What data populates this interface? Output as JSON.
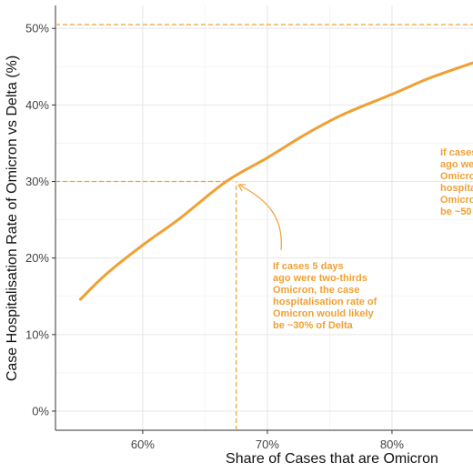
{
  "chart_data": {
    "type": "line",
    "xlabel": "Share of Cases that are Omicron",
    "ylabel": "Case Hospitalisation Rate of Omicron vs Delta (%)",
    "xlim": [
      0.53,
      0.865
    ],
    "ylim": [
      -0.025,
      0.53
    ],
    "x_ticks": [
      {
        "value": 0.6,
        "label": "60%"
      },
      {
        "value": 0.7,
        "label": "70%"
      },
      {
        "value": 0.8,
        "label": "80%"
      }
    ],
    "y_ticks": [
      {
        "value": 0.0,
        "label": "0%"
      },
      {
        "value": 0.1,
        "label": "10%"
      },
      {
        "value": 0.2,
        "label": "20%"
      },
      {
        "value": 0.3,
        "label": "30%"
      },
      {
        "value": 0.4,
        "label": "40%"
      },
      {
        "value": 0.5,
        "label": "50%"
      }
    ],
    "grid": true,
    "series": [
      {
        "color": "#f0a033",
        "points": [
          [
            0.55,
            0.146
          ],
          [
            0.57,
            0.178
          ],
          [
            0.6,
            0.217
          ],
          [
            0.63,
            0.252
          ],
          [
            0.667,
            0.3
          ],
          [
            0.7,
            0.331
          ],
          [
            0.73,
            0.361
          ],
          [
            0.76,
            0.387
          ],
          [
            0.8,
            0.414
          ],
          [
            0.83,
            0.435
          ],
          [
            0.865,
            0.455
          ]
        ]
      }
    ],
    "reference_lines": [
      {
        "id": "ref-30",
        "y": 0.3,
        "x_from": 0.53,
        "x_to": 0.667,
        "color": "#f0a033"
      },
      {
        "id": "ref-vertical",
        "x": 0.675,
        "y_from": -0.025,
        "y_to": 0.3,
        "color": "#f0a033"
      },
      {
        "id": "ref-50",
        "y": 0.505,
        "x_from": 0.53,
        "x_to": 0.865,
        "color": "#f0a033"
      }
    ],
    "annotations": [
      {
        "id": "annotation-two-thirds",
        "color": "#f0a033",
        "lines": [
          "If cases 5 days",
          "ago were two-thirds",
          "Omicron, the case",
          "hospitalisation rate of",
          "Omicron would likely",
          "be ~30% of Delta"
        ]
      },
      {
        "id": "annotation-right-cut",
        "color": "#f0a033",
        "lines": [
          "If cases",
          "ago we",
          "Omicro",
          "hospita",
          "Omicro",
          "be ~50"
        ]
      }
    ]
  }
}
